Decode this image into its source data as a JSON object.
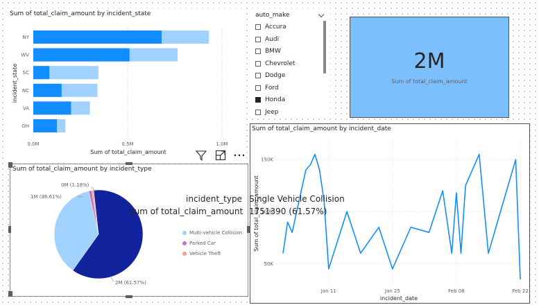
{
  "bar_visual": {
    "title": "Sum of total_claim_amount by incident_state",
    "chart_data": {
      "type": "bar",
      "orientation": "horizontal",
      "title": "Sum of total_claim_amount by incident_state",
      "xlabel": "Sum of total_claim_amount",
      "ylabel": "incident_state",
      "categories": [
        "NY",
        "WV",
        "SC",
        "NC",
        "VA",
        "OH"
      ],
      "xlim": [
        0,
        1000000
      ],
      "xticks": [
        "0.0M",
        "0.5M",
        "1.0M"
      ],
      "series": [
        {
          "name": "highlighted",
          "values": [
            680000,
            510000,
            85000,
            150000,
            200000,
            125000
          ]
        },
        {
          "name": "total",
          "values": [
            930000,
            765000,
            345000,
            340000,
            300000,
            170000
          ]
        }
      ],
      "grid": true,
      "colors": {
        "highlighted": "#118dff",
        "total": "#a0d1ff"
      }
    }
  },
  "visual_header": {
    "filter_icon": "filter-icon",
    "focus_icon": "focus-mode-icon",
    "more_icon": "more-options-icon"
  },
  "slicer": {
    "title": "auto_make",
    "items": [
      {
        "label": "Accura",
        "checked": false
      },
      {
        "label": "Audi",
        "checked": false
      },
      {
        "label": "BMW",
        "checked": false
      },
      {
        "label": "Chevrolet",
        "checked": false
      },
      {
        "label": "Dodge",
        "checked": false
      },
      {
        "label": "Ford",
        "checked": false
      },
      {
        "label": "Honda",
        "checked": true
      },
      {
        "label": "Jeep",
        "checked": false
      }
    ]
  },
  "card": {
    "value": "2M",
    "label": "Sum of total_claim_amount",
    "color": "#7cbfff"
  },
  "line_visual": {
    "title": "Sum of total_claim_amount by incident_date",
    "chart_data": {
      "type": "line",
      "title": "Sum of total_claim_amount by incident_date",
      "xlabel": "incident_date",
      "ylabel": "Sum of total_claim_amount",
      "xticks": [
        "Jan 11",
        "Jan 25",
        "Feb 08",
        "Feb 22"
      ],
      "yticks": [
        "50K",
        "100K",
        "150K"
      ],
      "x": [
        "Jan 01",
        "Jan 02",
        "Jan 03",
        "Jan 04",
        "Jan 05",
        "Jan 06",
        "Jan 07",
        "Jan 08",
        "Jan 09",
        "Jan 10",
        "Jan 11",
        "Jan 15",
        "Jan 18",
        "Jan 22",
        "Jan 25",
        "Jan 29",
        "Feb 02",
        "Feb 05",
        "Feb 07",
        "Feb 08",
        "Feb 09",
        "Feb 10",
        "Feb 13",
        "Feb 15",
        "Feb 21",
        "Feb 22"
      ],
      "y": [
        60000,
        90000,
        80000,
        100000,
        120000,
        140000,
        145000,
        155000,
        140000,
        110000,
        45000,
        100000,
        60000,
        85000,
        45000,
        85000,
        80000,
        120000,
        60000,
        118000,
        60000,
        125000,
        155000,
        60000,
        150000,
        35000
      ],
      "series_color": "#118dff",
      "grid": true
    }
  },
  "pie_visual": {
    "title": "Sum of total_claim_amount by incident_type",
    "chart_data": {
      "type": "pie",
      "title": "Sum of total_claim_amount by incident_type",
      "slices": [
        {
          "name": "Single Vehicle Collision",
          "value": 1751390,
          "percent": 61.57,
          "label": "2M (61.57%)",
          "color": "#12239e"
        },
        {
          "name": "Multi-vehicle Collision",
          "value": 1040000,
          "percent": 36.61,
          "label": "1M (36.61%)",
          "color": "#a0d1ff"
        },
        {
          "name": "Parked Car",
          "value": 33600,
          "percent": 1.18,
          "label": "0M (1.18%)",
          "color": "#c377c0"
        },
        {
          "name": "Vehicle Theft",
          "value": 18200,
          "percent": 0.64,
          "label": "",
          "color": "#f4a484"
        }
      ],
      "legend": [
        "Multi-vehicle Collision",
        "Parked Car",
        "Vehicle Theft"
      ],
      "legend_position": "right"
    }
  },
  "tooltip": {
    "field1": "incident_type",
    "value1": "Single Vehicle Collision",
    "field2": "Sum of total_claim_amount",
    "value2": "1751390 (61.57%)"
  }
}
